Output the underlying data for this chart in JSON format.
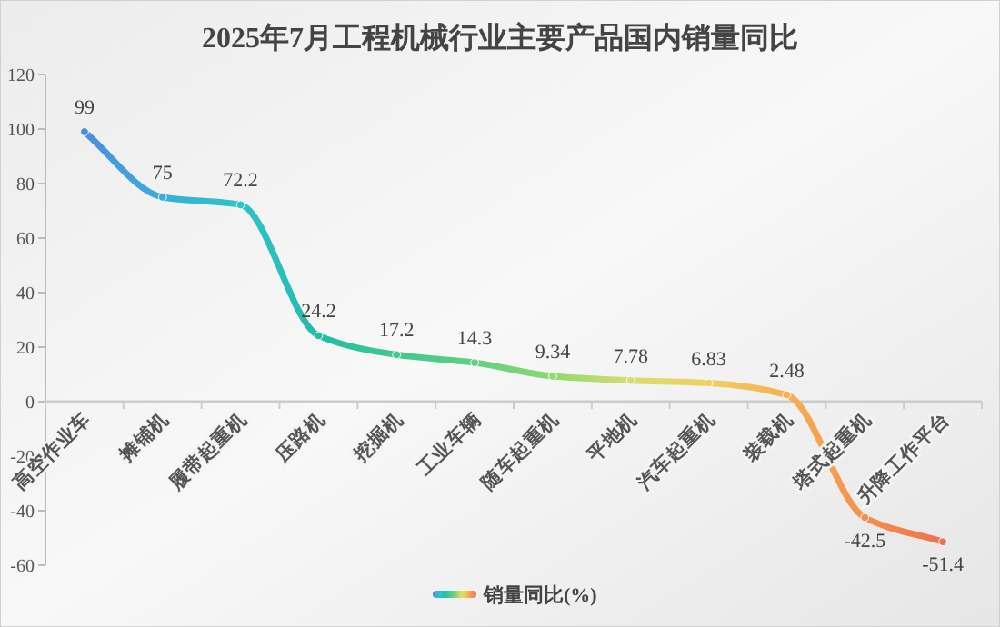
{
  "chart_data": {
    "type": "line",
    "title": "2025年7月工程机械行业主要产品国内销量同比",
    "categories": [
      "高空作业车",
      "摊铺机",
      "履带起重机",
      "压路机",
      "挖掘机",
      "工业车辆",
      "随车起重机",
      "平地机",
      "汽车起重机",
      "装载机",
      "塔式起重机",
      "升降工作平台"
    ],
    "series": [
      {
        "name": "销量同比(%)",
        "values": [
          99,
          75,
          72.2,
          24.2,
          17.2,
          14.3,
          9.34,
          7.78,
          6.83,
          2.48,
          -42.5,
          -51.4
        ],
        "colors": [
          "#4a8fe0",
          "#3aaed8",
          "#2ec4c8",
          "#22bca8",
          "#40c890",
          "#60d080",
          "#90d870",
          "#d8dc70",
          "#f0d060",
          "#f5b050",
          "#f59050",
          "#f07050"
        ]
      }
    ],
    "ylim": [
      -60,
      120
    ],
    "yticks": [
      -60,
      -40,
      -20,
      0,
      20,
      40,
      60,
      80,
      100,
      120
    ],
    "data_labels": true,
    "legend": "bottom",
    "grid": false,
    "marker": "circle",
    "line_style": "solid"
  }
}
